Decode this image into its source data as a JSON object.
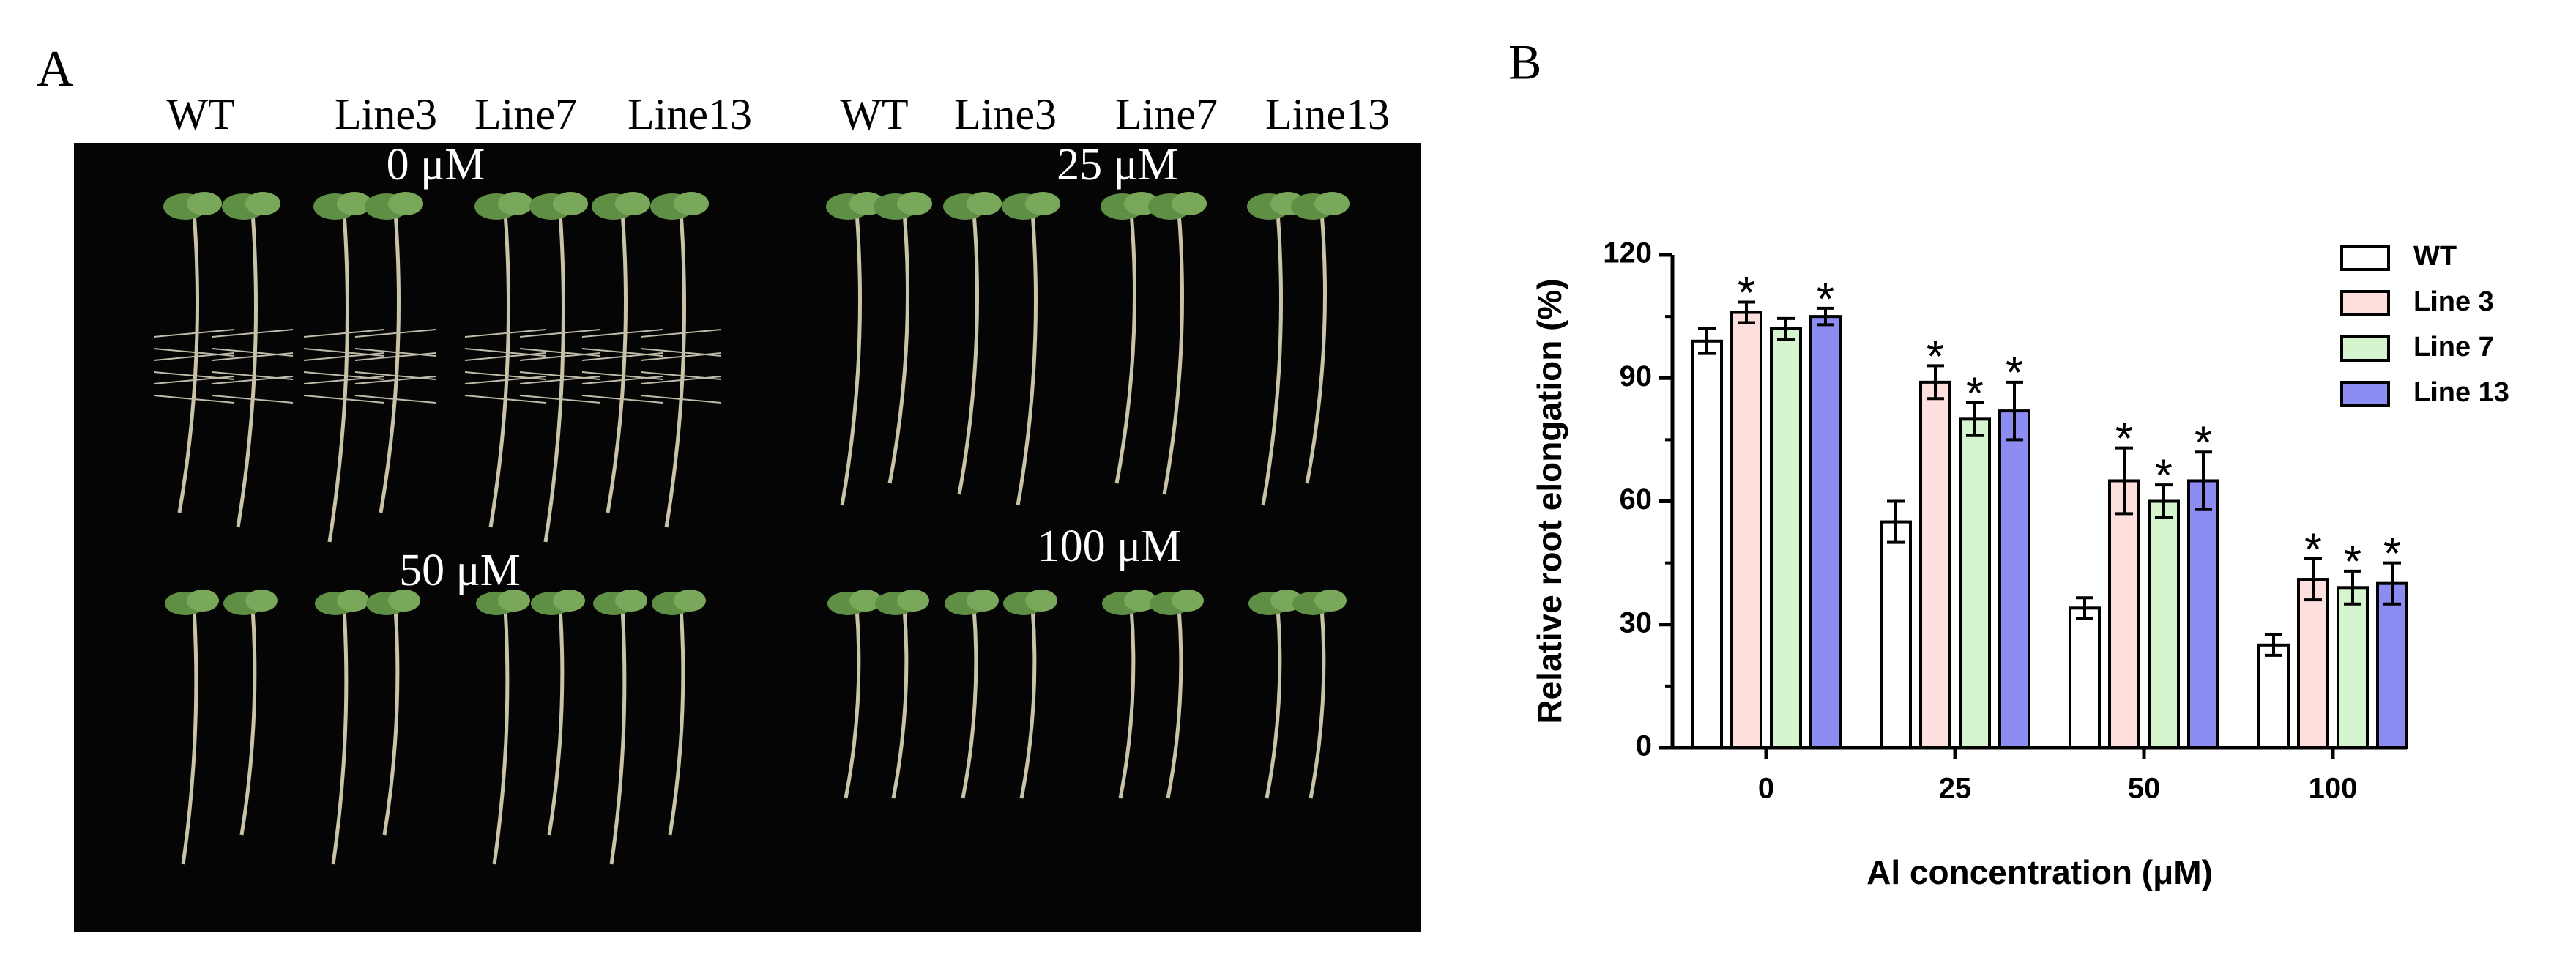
{
  "panel_a": {
    "label": "A",
    "lines_left": [
      "WT",
      "Line3",
      "Line7",
      "Line13"
    ],
    "lines_right": [
      "WT",
      "Line3",
      "Line7",
      "Line13"
    ],
    "treatments": [
      "0 μM",
      "25 μM",
      "50 μM",
      "100 μM"
    ]
  },
  "chart_data": {
    "type": "bar",
    "panel_label": "B",
    "x_label": "Al concentration (μM)",
    "y_label": "Relative root elongation (%)",
    "categories": [
      "0",
      "25",
      "50",
      "100"
    ],
    "ylim": [
      0,
      120
    ],
    "yticks": [
      0,
      30,
      60,
      90,
      120
    ],
    "legend": "upper right",
    "series": [
      {
        "name": "WT",
        "color": "#ffffff",
        "values": [
          99,
          55,
          34,
          25
        ],
        "errors": [
          3,
          5,
          2.5,
          2.5
        ],
        "significance": [
          null,
          null,
          null,
          null
        ]
      },
      {
        "name": "Line 3",
        "color": "#fde0de",
        "values": [
          106,
          89,
          65,
          41
        ],
        "errors": [
          2.5,
          4,
          8,
          5
        ],
        "significance": [
          "*",
          "*",
          "*",
          "*"
        ]
      },
      {
        "name": "Line 7",
        "color": "#d4f5ce",
        "values": [
          102,
          80,
          60,
          39
        ],
        "errors": [
          2.5,
          4,
          4,
          4
        ],
        "significance": [
          null,
          "*",
          "*",
          "*"
        ]
      },
      {
        "name": "Line 13",
        "color": "#8c8cf2",
        "values": [
          105,
          82,
          65,
          40
        ],
        "errors": [
          2,
          7,
          7,
          5
        ],
        "significance": [
          "*",
          "*",
          "*",
          "*"
        ]
      }
    ]
  }
}
